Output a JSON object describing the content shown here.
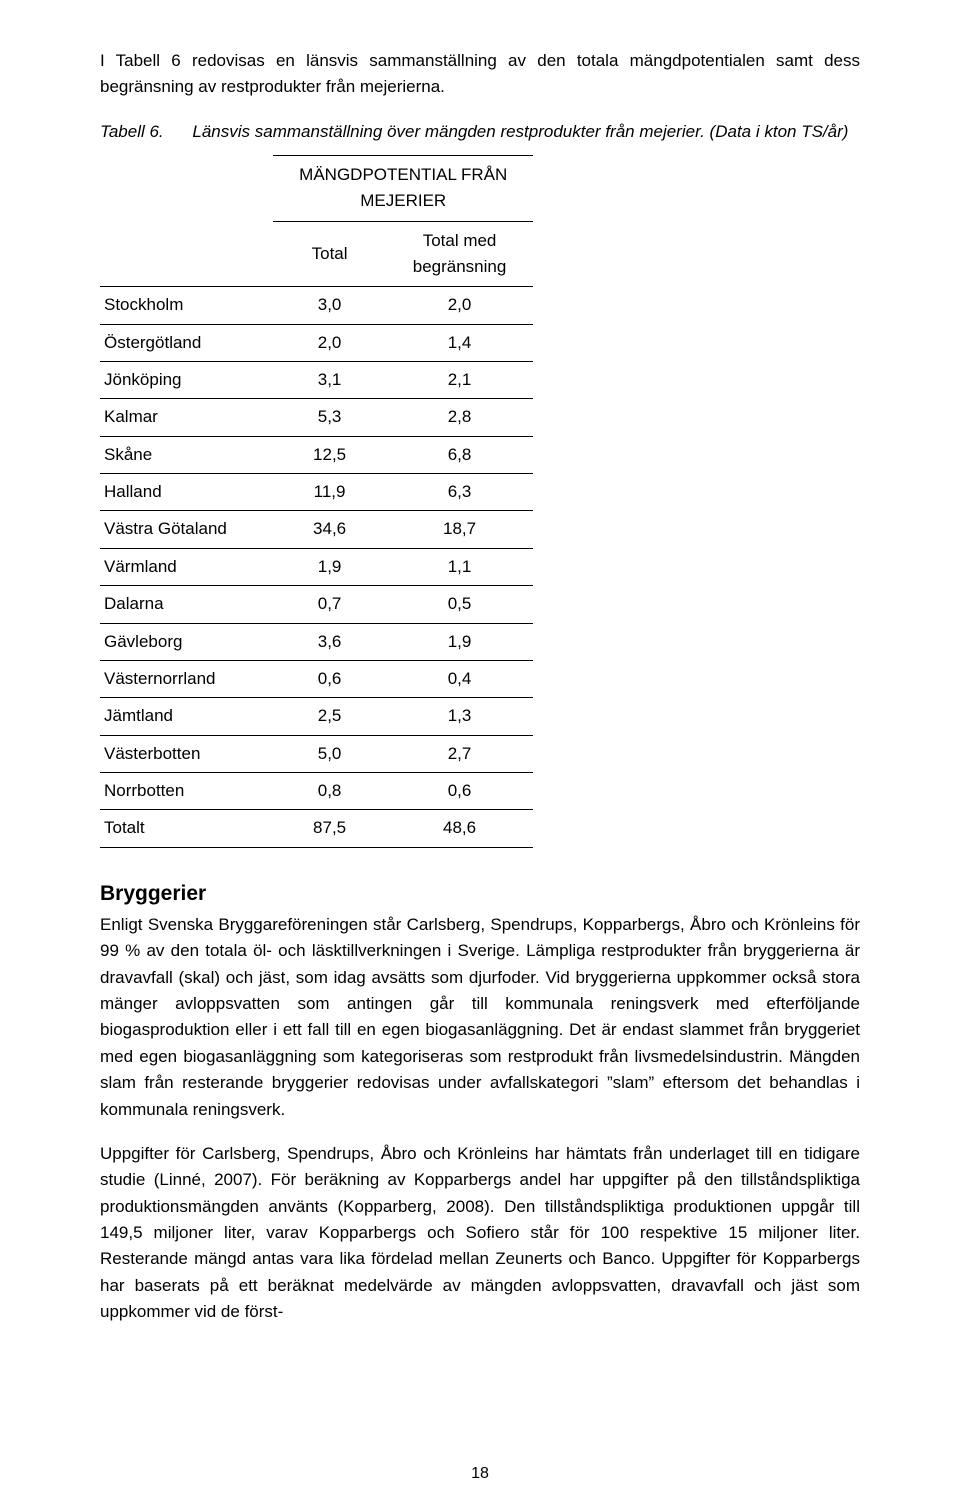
{
  "intro_paragraph": "I Tabell 6 redovisas en länsvis sammanställning av den totala mängdpotentialen samt dess begränsning av restprodukter från mejerierna.",
  "caption": {
    "label": "Tabell 6.",
    "text": "Länsvis sammanställning över mängden restprodukter från mejerier. (Data i kton TS/år)"
  },
  "table": {
    "super_header": "MÄNGDPOTENTIAL FRÅN MEJERIER",
    "columns": [
      "Total",
      "Total med begränsning"
    ],
    "col_widths_pct": [
      40,
      26,
      34
    ],
    "rows": [
      {
        "label": "Stockholm",
        "values": [
          "3,0",
          "2,0"
        ]
      },
      {
        "label": "Östergötland",
        "values": [
          "2,0",
          "1,4"
        ]
      },
      {
        "label": "Jönköping",
        "values": [
          "3,1",
          "2,1"
        ]
      },
      {
        "label": "Kalmar",
        "values": [
          "5,3",
          "2,8"
        ]
      },
      {
        "label": "Skåne",
        "values": [
          "12,5",
          "6,8"
        ]
      },
      {
        "label": "Halland",
        "values": [
          "11,9",
          "6,3"
        ]
      },
      {
        "label": "Västra Götaland",
        "values": [
          "34,6",
          "18,7"
        ]
      },
      {
        "label": "Värmland",
        "values": [
          "1,9",
          "1,1"
        ]
      },
      {
        "label": "Dalarna",
        "values": [
          "0,7",
          "0,5"
        ]
      },
      {
        "label": "Gävleborg",
        "values": [
          "3,6",
          "1,9"
        ]
      },
      {
        "label": "Västernorrland",
        "values": [
          "0,6",
          "0,4"
        ]
      },
      {
        "label": "Jämtland",
        "values": [
          "2,5",
          "1,3"
        ]
      },
      {
        "label": "Västerbotten",
        "values": [
          "5,0",
          "2,7"
        ]
      },
      {
        "label": "Norrbotten",
        "values": [
          "0,8",
          "0,6"
        ]
      },
      {
        "label": "Totalt",
        "values": [
          "87,5",
          "48,6"
        ]
      }
    ]
  },
  "section_heading": "Bryggerier",
  "para1": "Enligt Svenska Bryggareföreningen står Carlsberg, Spendrups, Kopparbergs, Åbro och Krönleins för 99 % av den totala öl- och läsktillverkningen i Sverige. Lämpliga restprodukter från bryggerierna är dravavfall (skal) och jäst, som idag avsätts som djurfoder. Vid bryggerierna uppkommer också stora mänger avloppsvatten som antingen går till kommunala reningsverk med efterföljande biogasproduktion eller i ett fall till en egen biogasanläggning. Det är endast slammet från bryggeriet med egen biogasanläggning som kategoriseras som restprodukt från livsmedelsindustrin. Mängden slam från resterande bryggerier redovisas under avfallskategori ”slam” eftersom det behandlas i kommunala reningsverk.",
  "para2": "Uppgifter för Carlsberg, Spendrups, Åbro och Krönleins har hämtats från underlaget till en tidigare studie (Linné, 2007). För beräkning av Kopparbergs andel har uppgifter på den tillståndspliktiga produktionsmängden använts (Kopparberg, 2008). Den tillståndspliktiga produktionen uppgår till 149,5 miljoner liter, varav Kopparbergs och Sofiero står för 100 respektive 15 miljoner liter. Resterande mängd antas vara lika fördelad mellan Zeunerts och Banco. Uppgifter för Kopparbergs har baserats på ett beräknat medelvärde av mängden avloppsvatten, dravavfall och jäst som uppkommer vid de först-",
  "page_number": "18"
}
